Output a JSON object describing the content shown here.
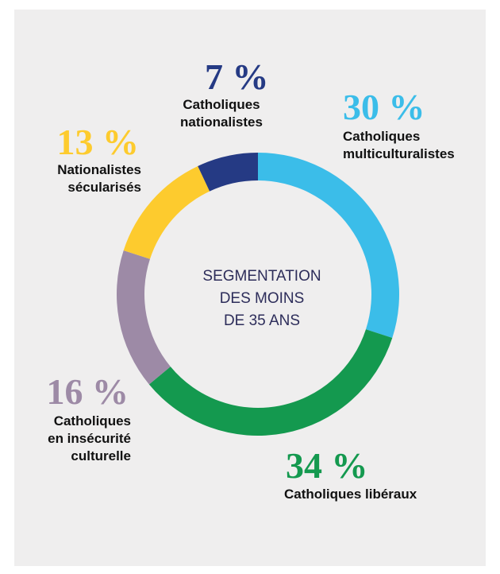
{
  "chart_data": {
    "type": "pie",
    "donut": true,
    "center_text": [
      "SEGMENTATION",
      "DES MOINS",
      "DE 35 ANS"
    ],
    "categories": [
      "Catholiques\nmulticulturalistes",
      "Catholiques libéraux",
      "Catholiques\nen insécurité\nculturelle",
      "Nationalistes\nsécularisés",
      "Catholiques\nnationalistes"
    ],
    "values": [
      30,
      34,
      16,
      13,
      7
    ],
    "value_labels": [
      "30 %",
      "34 %",
      "16 %",
      "13 %",
      "7 %"
    ],
    "colors": [
      "#3bbde9",
      "#14994f",
      "#9d8aa6",
      "#fdcb2e",
      "#253a84"
    ]
  }
}
